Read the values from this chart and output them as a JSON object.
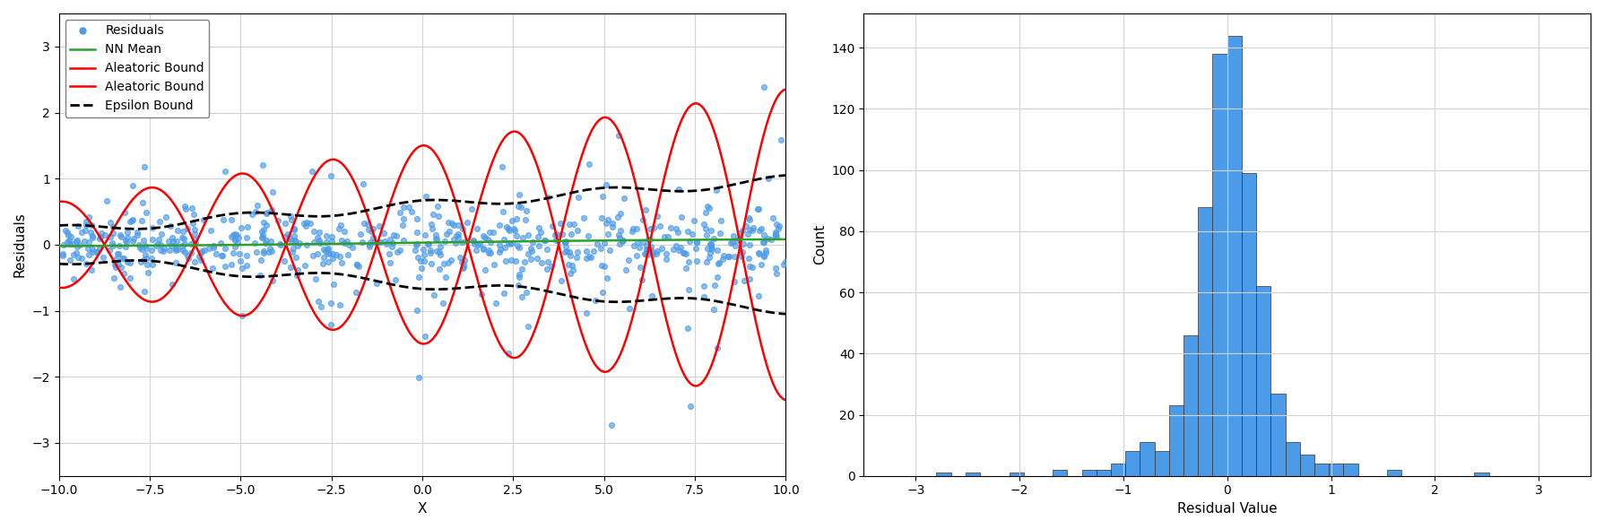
{
  "seed": 42,
  "n_scatter": 700,
  "x_range": [
    -10,
    10
  ],
  "scatter_color": "#4C9BE8",
  "scatter_alpha": 0.65,
  "scatter_size": 18,
  "mean_color": "#2CA02C",
  "mean_label": "NN Mean",
  "aleatoric_color": "red",
  "aleatoric_label_upper": "Aleatoric Bound",
  "aleatoric_label_lower": "Aleatoric Bound",
  "epsilon_color": "black",
  "epsilon_label": "Epsilon Bound",
  "epsilon_linestyle": "--",
  "xlabel_left": "X",
  "ylabel_left": "Residuals",
  "xlabel_right": "Residual Value",
  "ylabel_right": "Count",
  "grid": true,
  "hist_bins": 50,
  "hist_color": "#4C9BE8",
  "hist_edgecolor": "#333333",
  "legend_fontsize": 10,
  "tick_fontsize": 10,
  "label_fontsize": 11,
  "figsize": [
    17.89,
    5.9
  ],
  "dpi": 100,
  "ylim_left": [
    -3.5,
    3.5
  ],
  "xlim_hist": [
    -3.5,
    3.5
  ]
}
